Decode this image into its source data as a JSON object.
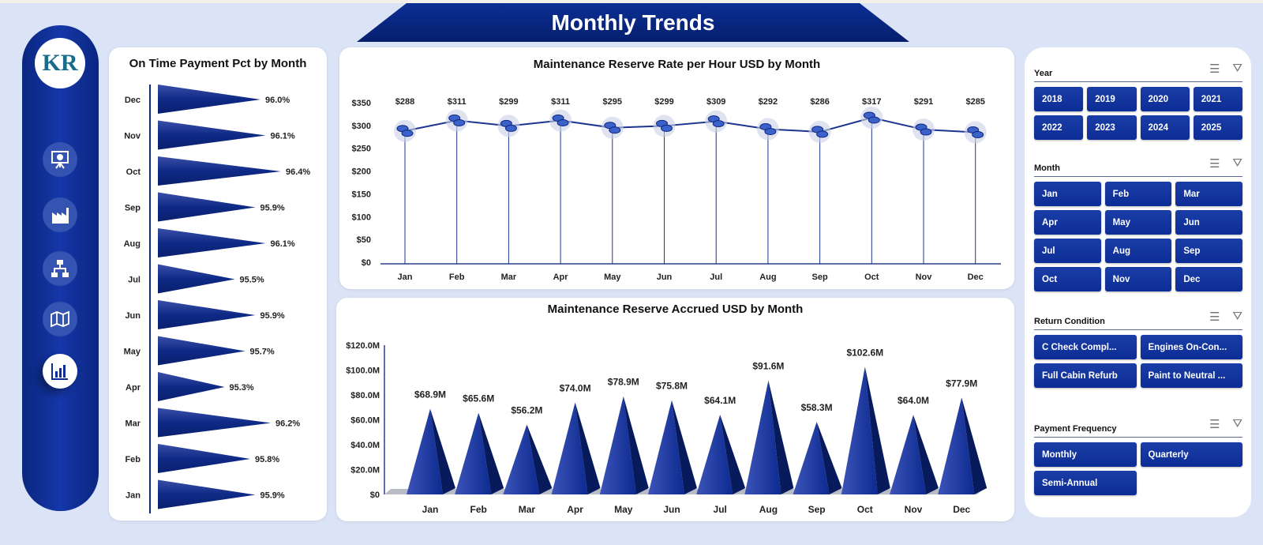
{
  "header": {
    "title": "Monthly Trends"
  },
  "sidebar": {
    "logo_text": "KR",
    "items": [
      {
        "icon": "presentation-chart-icon"
      },
      {
        "icon": "factory-icon"
      },
      {
        "icon": "hierarchy-icon"
      },
      {
        "icon": "map-icon"
      },
      {
        "icon": "bar-chart-icon",
        "active": true
      }
    ]
  },
  "colors": {
    "navy": "#0d2d96",
    "background": "#dbe3f6"
  },
  "chart_data": [
    {
      "type": "bar",
      "orientation": "horizontal",
      "title": "On Time Payment Pct by Month",
      "categories": [
        "Dec",
        "Nov",
        "Oct",
        "Sep",
        "Aug",
        "Jul",
        "Jun",
        "May",
        "Apr",
        "Mar",
        "Feb",
        "Jan"
      ],
      "values": [
        96.0,
        96.1,
        96.4,
        95.9,
        96.1,
        95.5,
        95.9,
        95.7,
        95.3,
        96.2,
        95.8,
        95.9
      ],
      "labels": [
        "96.0%",
        "96.1%",
        "96.4%",
        "95.9%",
        "96.1%",
        "95.5%",
        "95.9%",
        "95.7%",
        "95.3%",
        "96.2%",
        "95.8%",
        "95.9%"
      ],
      "grid": false
    },
    {
      "type": "line",
      "title": "Maintenance Reserve Rate per Hour USD by Month",
      "categories": [
        "Jan",
        "Feb",
        "Mar",
        "Apr",
        "May",
        "Jun",
        "Jul",
        "Aug",
        "Sep",
        "Oct",
        "Nov",
        "Dec"
      ],
      "values": [
        288,
        311,
        299,
        311,
        295,
        299,
        309,
        292,
        286,
        317,
        291,
        285
      ],
      "labels": [
        "$288",
        "$311",
        "$299",
        "$311",
        "$295",
        "$299",
        "$309",
        "$292",
        "$286",
        "$317",
        "$291",
        "$285"
      ],
      "yticks": [
        "$0",
        "$50",
        "$100",
        "$150",
        "$200",
        "$250",
        "$300",
        "$350"
      ],
      "ylim": [
        0,
        350
      ],
      "grid": false
    },
    {
      "type": "bar",
      "style": "cone",
      "title": "Maintenance Reserve Accrued USD by Month",
      "categories": [
        "Jan",
        "Feb",
        "Mar",
        "Apr",
        "May",
        "Jun",
        "Jul",
        "Aug",
        "Sep",
        "Oct",
        "Nov",
        "Dec"
      ],
      "values": [
        68.9,
        65.6,
        56.2,
        74.0,
        78.9,
        75.8,
        64.1,
        91.6,
        58.3,
        102.6,
        64.0,
        77.9
      ],
      "labels": [
        "$68.9M",
        "$65.6M",
        "$56.2M",
        "$74.0M",
        "$78.9M",
        "$75.8M",
        "$64.1M",
        "$91.6M",
        "$58.3M",
        "$102.6M",
        "$64.0M",
        "$77.9M"
      ],
      "yticks": [
        "$0",
        "$20.0M",
        "$40.0M",
        "$60.0M",
        "$80.0M",
        "$100.0M",
        "$120.0M"
      ],
      "ylim": [
        0,
        120
      ],
      "grid": false
    }
  ],
  "slicers": [
    {
      "title": "Year",
      "cols": 4,
      "items": [
        "2018",
        "2019",
        "2020",
        "2021",
        "2022",
        "2023",
        "2024",
        "2025"
      ]
    },
    {
      "title": "Month",
      "cols": 3,
      "items": [
        "Jan",
        "Feb",
        "Mar",
        "Apr",
        "May",
        "Jun",
        "Jul",
        "Aug",
        "Sep",
        "Oct",
        "Nov",
        "Dec"
      ]
    },
    {
      "title": "Return Condition",
      "cols": 2,
      "items": [
        "C Check Compl...",
        "Engines On-Con...",
        "Full Cabin Refurb",
        "Paint to Neutral ..."
      ]
    },
    {
      "title": "Payment Frequency",
      "cols": 2,
      "items": [
        "Monthly",
        "Quarterly",
        "Semi-Annual"
      ]
    }
  ]
}
